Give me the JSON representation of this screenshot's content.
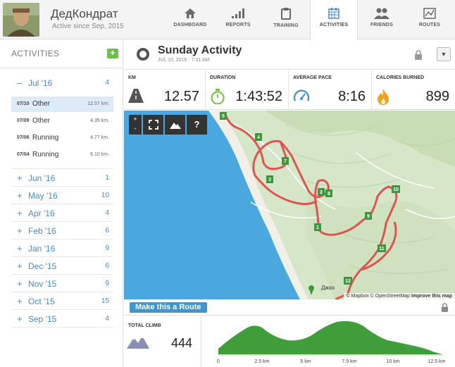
{
  "user": {
    "name": "ДедКондрат",
    "since": "Active since Sep, 2015"
  },
  "nav": [
    {
      "label": "DASHBOARD",
      "icon": "home-icon"
    },
    {
      "label": "REPORTS",
      "icon": "bars-icon"
    },
    {
      "label": "TRAINING",
      "icon": "clipboard-icon"
    },
    {
      "label": "ACTIVITIES",
      "icon": "calendar-icon"
    },
    {
      "label": "FRIENDS",
      "icon": "people-icon"
    },
    {
      "label": "ROUTES",
      "icon": "route-map-icon"
    }
  ],
  "sidebar": {
    "title": "ACTIVITIES",
    "add_label": "+",
    "open_month": {
      "label": "Jul '16",
      "count": "4",
      "sign": "–"
    },
    "activities": [
      {
        "date": "07/10",
        "name": "Other",
        "dist": "12.57 km."
      },
      {
        "date": "07/09",
        "name": "Other",
        "dist": "4.35 km."
      },
      {
        "date": "07/06",
        "name": "Running",
        "dist": "4.77 km."
      },
      {
        "date": "07/04",
        "name": "Running",
        "dist": "6.10 km."
      }
    ],
    "months": [
      {
        "label": "Jun '16",
        "count": "1"
      },
      {
        "label": "May '16",
        "count": "10"
      },
      {
        "label": "Apr '16",
        "count": "4"
      },
      {
        "label": "Feb '16",
        "count": "6"
      },
      {
        "label": "Jan '16",
        "count": "9"
      },
      {
        "label": "Dec '15",
        "count": "6"
      },
      {
        "label": "Nov '15",
        "count": "9"
      },
      {
        "label": "Oct '15",
        "count": "15"
      },
      {
        "label": "Sep '15",
        "count": "4"
      }
    ]
  },
  "activity": {
    "title": "Sunday Activity",
    "date": "JUL 10, 2016 · 7:31 AM",
    "dropdown": "▼"
  },
  "stats": {
    "km_label": "KM",
    "km": "12.57",
    "duration_label": "DURATION",
    "duration": "1:43:52",
    "pace_label": "AVERAGE PACE",
    "pace": "8:16",
    "cal_label": "CALORIES BURNED",
    "cal": "899"
  },
  "map": {
    "zoom_in": "+",
    "zoom_out": "-",
    "help": "?",
    "km_markers": [
      "1",
      "2",
      "3",
      "4",
      "5",
      "7",
      "8",
      "9",
      "10",
      "11",
      "12"
    ],
    "place_label": "Джах",
    "attribution_mapbox": "© Mapbox",
    "attribution_osm": "© OpenStreetMap",
    "attribution_improve": "Improve this map",
    "colors": {
      "water": "#4aa8de",
      "land": "#d9e8cf",
      "route": "#e0544f",
      "marker": "#3a9a3a"
    }
  },
  "route_button": "Make this a Route",
  "climb": {
    "label": "TOTAL CLIMB",
    "value": "444"
  },
  "elevation": {
    "ticks": [
      "0",
      "2.5 km",
      "5 km",
      "7.5 km",
      "10 km",
      "12.5 km"
    ],
    "fill": "#3f9d3a"
  }
}
